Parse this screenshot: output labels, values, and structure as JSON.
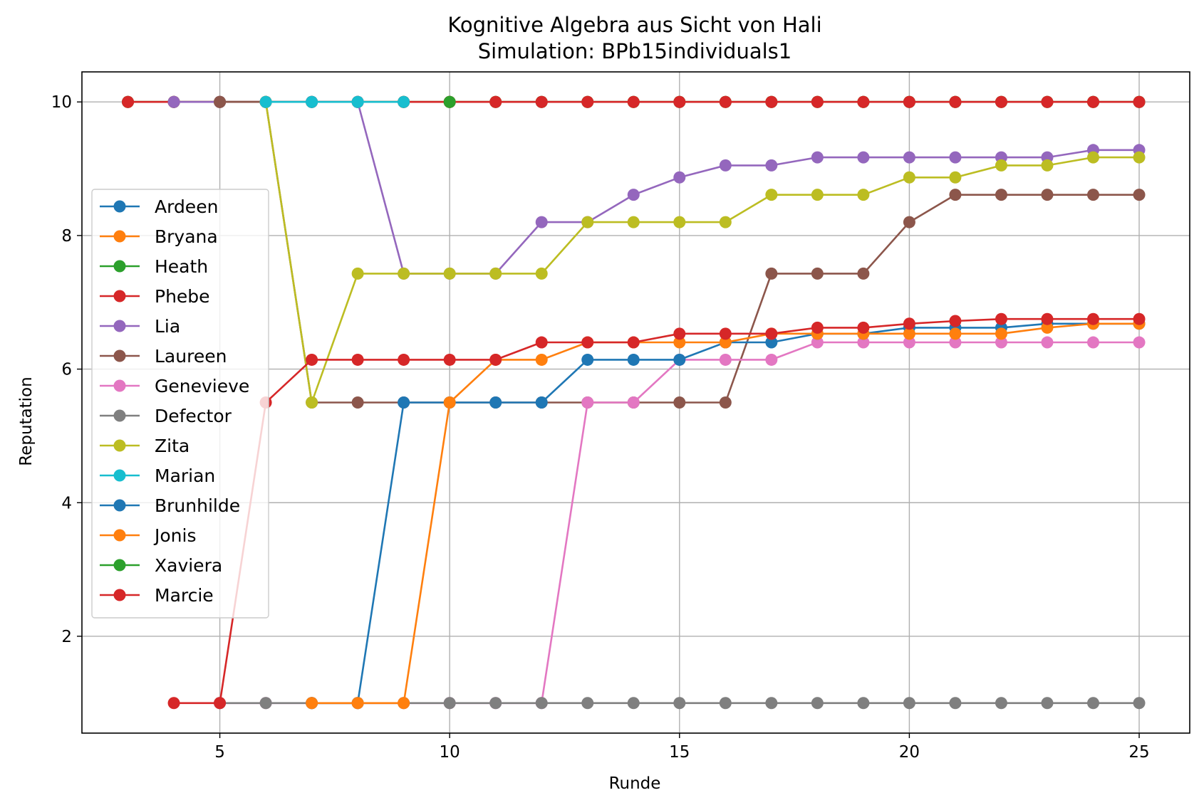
{
  "chart_data": {
    "type": "line",
    "title": "Kognitive Algebra aus Sicht von Hali",
    "subtitle": "Simulation: BPb15individuals1",
    "xlabel": "Runde",
    "ylabel": "Reputation",
    "xlim": [
      2.0,
      26.1
    ],
    "ylim": [
      0.55,
      10.45
    ],
    "xticks": [
      5,
      10,
      15,
      20,
      25
    ],
    "yticks": [
      2,
      4,
      6,
      8,
      10
    ],
    "grid": true,
    "legend_position": "center-left",
    "series": [
      {
        "name": "Ardeen",
        "color": "#1f77b4",
        "points": [
          [
            3,
            10
          ],
          [
            4,
            10
          ],
          [
            5,
            10
          ],
          [
            6,
            10
          ],
          [
            7,
            10
          ],
          [
            8,
            10
          ],
          [
            9,
            10
          ],
          [
            10,
            10
          ],
          [
            11,
            10
          ],
          [
            12,
            10
          ],
          [
            13,
            10
          ],
          [
            14,
            10
          ],
          [
            15,
            10
          ],
          [
            16,
            10
          ],
          [
            17,
            10
          ],
          [
            18,
            10
          ],
          [
            19,
            10
          ],
          [
            20,
            10
          ],
          [
            21,
            10
          ],
          [
            22,
            10
          ],
          [
            23,
            10
          ],
          [
            24,
            10
          ],
          [
            25,
            10
          ]
        ]
      },
      {
        "name": "Bryana",
        "color": "#ff7f0e",
        "points": [
          [
            3,
            10
          ],
          [
            4,
            10
          ],
          [
            5,
            10
          ],
          [
            6,
            10
          ],
          [
            7,
            10
          ],
          [
            8,
            10
          ],
          [
            9,
            10
          ],
          [
            10,
            10
          ],
          [
            11,
            10
          ],
          [
            12,
            10
          ],
          [
            13,
            10
          ],
          [
            14,
            10
          ],
          [
            15,
            10
          ],
          [
            16,
            10
          ],
          [
            17,
            10
          ],
          [
            18,
            10
          ],
          [
            19,
            10
          ],
          [
            20,
            10
          ],
          [
            21,
            10
          ],
          [
            22,
            10
          ],
          [
            23,
            10
          ],
          [
            24,
            10
          ],
          [
            25,
            10
          ]
        ]
      },
      {
        "name": "Heath",
        "color": "#2ca02c",
        "points": [
          [
            3,
            10
          ],
          [
            4,
            10
          ],
          [
            5,
            10
          ],
          [
            6,
            10
          ],
          [
            7,
            10
          ],
          [
            8,
            10
          ],
          [
            9,
            10
          ],
          [
            10,
            10
          ],
          [
            11,
            10
          ],
          [
            12,
            10
          ],
          [
            13,
            10
          ],
          [
            14,
            10
          ],
          [
            15,
            10
          ],
          [
            16,
            10
          ],
          [
            17,
            10
          ],
          [
            18,
            10
          ],
          [
            19,
            10
          ],
          [
            20,
            10
          ],
          [
            21,
            10
          ],
          [
            22,
            10
          ],
          [
            23,
            10
          ],
          [
            24,
            10
          ],
          [
            25,
            10
          ]
        ]
      },
      {
        "name": "Phebe",
        "color": "#d62728",
        "points": [
          [
            3,
            10
          ],
          [
            4,
            10
          ],
          [
            5,
            10
          ],
          [
            6,
            10
          ],
          [
            7,
            10
          ],
          [
            8,
            10
          ],
          [
            9,
            10
          ],
          [
            10,
            10
          ],
          [
            11,
            10
          ],
          [
            12,
            10
          ],
          [
            13,
            10
          ],
          [
            14,
            10
          ],
          [
            15,
            10
          ],
          [
            16,
            10
          ],
          [
            17,
            10
          ],
          [
            18,
            10
          ],
          [
            19,
            10
          ],
          [
            20,
            10
          ],
          [
            21,
            10
          ],
          [
            22,
            10
          ],
          [
            23,
            10
          ],
          [
            24,
            10
          ],
          [
            25,
            10
          ]
        ]
      },
      {
        "name": "Lia",
        "color": "#9467bd",
        "points": [
          [
            4,
            10
          ],
          [
            5,
            10
          ],
          [
            6,
            10
          ],
          [
            7,
            10
          ],
          [
            8,
            10
          ],
          [
            9,
            7.43
          ],
          [
            10,
            7.43
          ],
          [
            11,
            7.43
          ],
          [
            12,
            8.2
          ],
          [
            13,
            8.2
          ],
          [
            14,
            8.61
          ],
          [
            15,
            8.87
          ],
          [
            16,
            9.05
          ],
          [
            17,
            9.05
          ],
          [
            18,
            9.17
          ],
          [
            19,
            9.17
          ],
          [
            20,
            9.17
          ],
          [
            21,
            9.17
          ],
          [
            22,
            9.17
          ],
          [
            23,
            9.17
          ],
          [
            24,
            9.28
          ],
          [
            25,
            9.28
          ]
        ]
      },
      {
        "name": "Laureen",
        "color": "#8c564b",
        "points": [
          [
            5,
            10
          ],
          [
            6,
            10
          ],
          [
            7,
            5.5
          ],
          [
            8,
            5.5
          ],
          [
            9,
            5.5
          ],
          [
            10,
            5.5
          ],
          [
            11,
            5.5
          ],
          [
            12,
            5.5
          ],
          [
            13,
            5.5
          ],
          [
            14,
            5.5
          ],
          [
            15,
            5.5
          ],
          [
            16,
            5.5
          ],
          [
            17,
            7.43
          ],
          [
            18,
            7.43
          ],
          [
            19,
            7.43
          ],
          [
            20,
            8.2
          ],
          [
            21,
            8.61
          ],
          [
            22,
            8.61
          ],
          [
            23,
            8.61
          ],
          [
            24,
            8.61
          ],
          [
            25,
            8.61
          ]
        ]
      },
      {
        "name": "Genevieve",
        "color": "#e377c2",
        "points": [
          [
            5,
            1
          ],
          [
            6,
            1
          ],
          [
            7,
            1
          ],
          [
            8,
            1
          ],
          [
            9,
            1
          ],
          [
            10,
            1
          ],
          [
            11,
            1
          ],
          [
            12,
            1
          ],
          [
            13,
            5.5
          ],
          [
            14,
            5.5
          ],
          [
            15,
            6.14
          ],
          [
            16,
            6.14
          ],
          [
            17,
            6.14
          ],
          [
            18,
            6.4
          ],
          [
            19,
            6.4
          ],
          [
            20,
            6.4
          ],
          [
            21,
            6.4
          ],
          [
            22,
            6.4
          ],
          [
            23,
            6.4
          ],
          [
            24,
            6.4
          ],
          [
            25,
            6.4
          ]
        ]
      },
      {
        "name": "Defector",
        "color": "#7f7f7f",
        "points": [
          [
            5,
            1
          ],
          [
            6,
            1
          ],
          [
            7,
            1
          ],
          [
            8,
            1
          ],
          [
            9,
            1
          ],
          [
            10,
            1
          ],
          [
            11,
            1
          ],
          [
            12,
            1
          ],
          [
            13,
            1
          ],
          [
            14,
            1
          ],
          [
            15,
            1
          ],
          [
            16,
            1
          ],
          [
            17,
            1
          ],
          [
            18,
            1
          ],
          [
            19,
            1
          ],
          [
            20,
            1
          ],
          [
            21,
            1
          ],
          [
            22,
            1
          ],
          [
            23,
            1
          ],
          [
            24,
            1
          ],
          [
            25,
            1
          ]
        ]
      },
      {
        "name": "Zita",
        "color": "#bcbd22",
        "points": [
          [
            6,
            10
          ],
          [
            7,
            5.5
          ],
          [
            8,
            7.43
          ],
          [
            9,
            7.43
          ],
          [
            10,
            7.43
          ],
          [
            11,
            7.43
          ],
          [
            12,
            7.43
          ],
          [
            13,
            8.2
          ],
          [
            14,
            8.2
          ],
          [
            15,
            8.2
          ],
          [
            16,
            8.2
          ],
          [
            17,
            8.61
          ],
          [
            18,
            8.61
          ],
          [
            19,
            8.61
          ],
          [
            20,
            8.87
          ],
          [
            21,
            8.87
          ],
          [
            22,
            9.05
          ],
          [
            23,
            9.05
          ],
          [
            24,
            9.17
          ],
          [
            25,
            9.17
          ]
        ]
      },
      {
        "name": "Marian",
        "color": "#17becf",
        "points": [
          [
            6,
            10
          ],
          [
            7,
            10
          ],
          [
            8,
            10
          ],
          [
            9,
            10
          ]
        ]
      },
      {
        "name": "Brunhilde",
        "color": "#1f77b4",
        "points": [
          [
            7,
            1
          ],
          [
            8,
            1
          ],
          [
            9,
            5.5
          ],
          [
            10,
            5.5
          ],
          [
            11,
            5.5
          ],
          [
            12,
            5.5
          ],
          [
            13,
            6.14
          ],
          [
            14,
            6.14
          ],
          [
            15,
            6.14
          ],
          [
            16,
            6.4
          ],
          [
            17,
            6.4
          ],
          [
            18,
            6.53
          ],
          [
            19,
            6.53
          ],
          [
            20,
            6.62
          ],
          [
            21,
            6.62
          ],
          [
            22,
            6.62
          ],
          [
            23,
            6.68
          ],
          [
            24,
            6.68
          ],
          [
            25,
            6.68
          ]
        ]
      },
      {
        "name": "Jonis",
        "color": "#ff7f0e",
        "points": [
          [
            7,
            1
          ],
          [
            8,
            1
          ],
          [
            9,
            1
          ],
          [
            10,
            5.5
          ],
          [
            11,
            6.14
          ],
          [
            12,
            6.14
          ],
          [
            13,
            6.4
          ],
          [
            14,
            6.4
          ],
          [
            15,
            6.4
          ],
          [
            16,
            6.4
          ],
          [
            17,
            6.53
          ],
          [
            18,
            6.53
          ],
          [
            19,
            6.53
          ],
          [
            20,
            6.53
          ],
          [
            21,
            6.53
          ],
          [
            22,
            6.53
          ],
          [
            23,
            6.62
          ],
          [
            24,
            6.68
          ],
          [
            25,
            6.68
          ]
        ]
      },
      {
        "name": "Xaviera",
        "color": "#2ca02c",
        "points": [
          [
            10,
            10
          ]
        ]
      },
      {
        "name": "Marcie",
        "color": "#d62728",
        "points": [
          [
            4,
            1
          ],
          [
            5,
            1
          ],
          [
            6,
            5.5
          ],
          [
            7,
            6.14
          ],
          [
            8,
            6.14
          ],
          [
            9,
            6.14
          ],
          [
            10,
            6.14
          ],
          [
            11,
            6.14
          ],
          [
            12,
            6.4
          ],
          [
            13,
            6.4
          ],
          [
            14,
            6.4
          ],
          [
            15,
            6.53
          ],
          [
            16,
            6.53
          ],
          [
            17,
            6.53
          ],
          [
            18,
            6.62
          ],
          [
            19,
            6.62
          ],
          [
            20,
            6.68
          ],
          [
            21,
            6.72
          ],
          [
            22,
            6.75
          ],
          [
            23,
            6.75
          ],
          [
            24,
            6.75
          ],
          [
            25,
            6.75
          ]
        ]
      }
    ]
  }
}
